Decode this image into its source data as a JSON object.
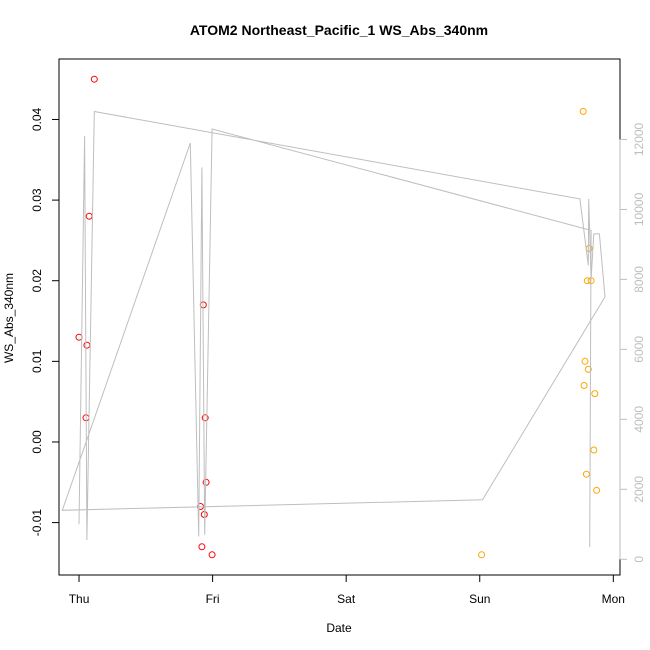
{
  "chart_data": {
    "type": "scatter",
    "title": "ATOM2 Northeast_Pacific_1 WS_Abs_340nm",
    "xlabel": "Date",
    "ylabel": "WS_Abs_340nm",
    "x_ticks": [
      "Thu",
      "Fri",
      "Sat",
      "Sun",
      "Mon"
    ],
    "xlim": [
      "Thu 00:00",
      "Mon 00:00"
    ],
    "ylim": [
      -0.0165,
      0.0475
    ],
    "y_ticks": [
      -0.01,
      0.0,
      0.01,
      0.02,
      0.03,
      0.04
    ],
    "y_tick_labels": [
      "-0.01",
      "0.00",
      "0.01",
      "0.02",
      "0.03",
      "0.04"
    ],
    "y2lim": [
      -450,
      14300
    ],
    "y2_ticks": [
      0,
      2000,
      4000,
      6000,
      8000,
      10000,
      12000
    ],
    "y2_tick_labels": [
      "0",
      "2000",
      "4000",
      "6000",
      "8000",
      "10000",
      "12000"
    ],
    "grid": false,
    "colors": {
      "series_red": "#ff0000",
      "series_orange": "#ffa500",
      "line": "#bebebe",
      "axis": "#000000"
    },
    "series": [
      {
        "color": "#ff0000",
        "axis": "left",
        "points": [
          {
            "x": "Thu 00:00",
            "y": 0.013
          },
          {
            "x": "Thu 01:15",
            "y": 0.003
          },
          {
            "x": "Thu 01:25",
            "y": 0.012
          },
          {
            "x": "Thu 01:50",
            "y": 0.028
          },
          {
            "x": "Thu 02:45",
            "y": 0.045
          },
          {
            "x": "Thu 21:50",
            "y": -0.008
          },
          {
            "x": "Thu 22:05",
            "y": -0.013
          },
          {
            "x": "Thu 22:20",
            "y": 0.017
          },
          {
            "x": "Thu 22:30",
            "y": -0.009
          },
          {
            "x": "Thu 22:40",
            "y": 0.003
          },
          {
            "x": "Thu 22:50",
            "y": -0.005
          },
          {
            "x": "Thu 23:55",
            "y": -0.014
          }
        ]
      },
      {
        "color": "#ffa500",
        "axis": "left",
        "points": [
          {
            "x": "Sun 00:20",
            "y": -0.014
          },
          {
            "x": "Sun 18:35",
            "y": 0.041
          },
          {
            "x": "Sun 18:45",
            "y": 0.007
          },
          {
            "x": "Sun 18:55",
            "y": 0.01
          },
          {
            "x": "Sun 19:10",
            "y": -0.004
          },
          {
            "x": "Sun 19:20",
            "y": 0.02
          },
          {
            "x": "Sun 19:30",
            "y": 0.009
          },
          {
            "x": "Sun 19:40",
            "y": 0.024
          },
          {
            "x": "Sun 20:00",
            "y": 0.02
          },
          {
            "x": "Sun 20:30",
            "y": -0.001
          },
          {
            "x": "Sun 20:40",
            "y": 0.006
          },
          {
            "x": "Sun 21:00",
            "y": -0.006
          }
        ]
      },
      {
        "color": "#bebebe",
        "axis": "right",
        "type": "line",
        "points": [
          {
            "x": "Thu 00:00",
            "y": 1000
          },
          {
            "x": "Thu 01:00",
            "y": 12100
          },
          {
            "x": "Thu 01:25",
            "y": 550
          },
          {
            "x": "Thu 02:45",
            "y": 12800
          },
          {
            "x": "Sun 18:00",
            "y": 10300
          },
          {
            "x": "Sun 19:30",
            "y": 8400
          },
          {
            "x": "Sun 19:35",
            "y": 10300
          },
          {
            "x": "Sun 20:00",
            "y": 8000
          },
          {
            "x": "Sun 20:30",
            "y": 9300
          },
          {
            "x": "Sun 21:30",
            "y": 9300
          },
          {
            "x": "Sun 22:30",
            "y": 7500
          },
          {
            "x": "Sun 00:30",
            "y": 1700
          },
          {
            "x": "Wed 21:00",
            "y": 1400
          },
          {
            "x": "Thu 20:00",
            "y": 11900
          },
          {
            "x": "Thu 21:30",
            "y": 650
          },
          {
            "x": "Thu 22:05",
            "y": 11200
          },
          {
            "x": "Thu 22:35",
            "y": 700
          },
          {
            "x": "Thu 23:55",
            "y": 12300
          },
          {
            "x": "Sun 20:00",
            "y": 9400
          },
          {
            "x": "Sun 19:45",
            "y": 350
          }
        ]
      }
    ]
  }
}
